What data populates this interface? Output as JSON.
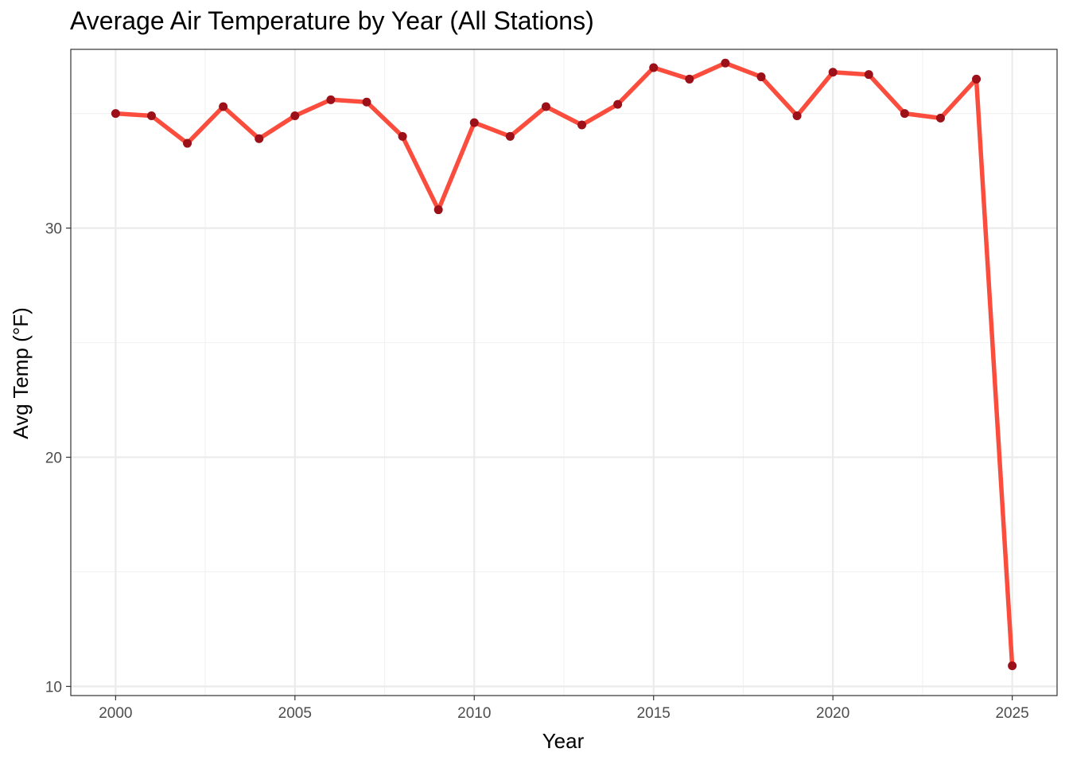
{
  "chart_data": {
    "type": "line",
    "title": "Average Air Temperature by Year (All Stations)",
    "xlabel": "Year",
    "ylabel": "Avg Temp (°F)",
    "xlim": [
      1998.75,
      2026.25
    ],
    "ylim": [
      9.6,
      37.8
    ],
    "x_ticks": [
      2000,
      2005,
      2010,
      2015,
      2020,
      2025
    ],
    "y_ticks": [
      10,
      20,
      30
    ],
    "grid": true,
    "legend": "none",
    "series": [
      {
        "x": [
          2000,
          2001,
          2002,
          2003,
          2004,
          2005,
          2006,
          2007,
          2008,
          2009,
          2010,
          2011,
          2012,
          2013,
          2014,
          2015,
          2016,
          2017,
          2018,
          2019,
          2020,
          2021,
          2022,
          2023,
          2024,
          2025
        ],
        "y": [
          35.0,
          34.9,
          33.7,
          35.3,
          33.9,
          34.9,
          35.6,
          35.5,
          34.0,
          30.8,
          34.6,
          34.0,
          35.3,
          34.5,
          35.4,
          37.0,
          36.5,
          37.2,
          36.6,
          34.9,
          36.8,
          36.7,
          35.0,
          34.8,
          36.5,
          10.9
        ]
      }
    ],
    "colors": {
      "line": "#fb4d3d",
      "point": "#9b1019",
      "grid_major": "#ebebeb",
      "grid_minor": "#f2f2f2",
      "panel_border": "#333333"
    }
  }
}
